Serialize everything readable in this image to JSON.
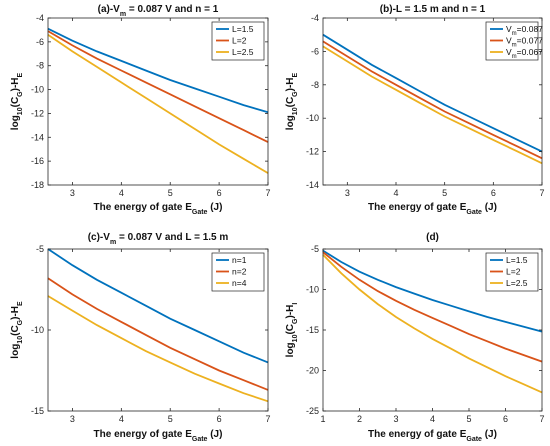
{
  "chart_data": [
    {
      "panel": "a",
      "type": "line",
      "title_parts": [
        "(a)-V",
        "m",
        " = 0.087 V and n = 1"
      ],
      "xlabel_parts": [
        "The energy of gate E",
        "Gate",
        " (J)"
      ],
      "ylabel_parts": [
        "log",
        "10",
        "(C",
        "G",
        ")-H",
        "E"
      ],
      "xlim": [
        2.5,
        7
      ],
      "ylim": [
        -18,
        -4
      ],
      "xticks": [
        3,
        4,
        5,
        6,
        7
      ],
      "yticks": [
        -18,
        -16,
        -14,
        -12,
        -10,
        -8,
        -6,
        -4
      ],
      "legend_position": "top-right",
      "series": [
        {
          "name": "L=1.5",
          "color": "#0072BD",
          "x": [
            2.5,
            3,
            3.5,
            4,
            4.5,
            5,
            5.5,
            6,
            6.5,
            7
          ],
          "y": [
            -4.9,
            -5.9,
            -6.8,
            -7.6,
            -8.4,
            -9.2,
            -9.9,
            -10.6,
            -11.3,
            -11.9
          ]
        },
        {
          "name": "L=2",
          "color": "#D95319",
          "x": [
            2.5,
            3,
            3.5,
            4,
            4.5,
            5,
            5.5,
            6,
            6.5,
            7
          ],
          "y": [
            -5.1,
            -6.3,
            -7.4,
            -8.4,
            -9.4,
            -10.4,
            -11.4,
            -12.4,
            -13.4,
            -14.4
          ]
        },
        {
          "name": "L=2.5",
          "color": "#EDB120",
          "x": [
            2.5,
            3,
            3.5,
            4,
            4.5,
            5,
            5.5,
            6,
            6.5,
            7
          ],
          "y": [
            -5.4,
            -6.8,
            -8.1,
            -9.4,
            -10.7,
            -12.0,
            -13.3,
            -14.6,
            -15.8,
            -17.0
          ]
        }
      ]
    },
    {
      "panel": "b",
      "type": "line",
      "title_parts": [
        "(b)-L = 1.5 m and n = 1"
      ],
      "xlabel_parts": [
        "The energy of gate E",
        "Gate",
        " (J)"
      ],
      "ylabel_parts": [
        "log",
        "10",
        "(C",
        "G",
        ")-H",
        "E"
      ],
      "xlim": [
        2.5,
        7
      ],
      "ylim": [
        -14,
        -4
      ],
      "xticks": [
        3,
        4,
        5,
        6,
        7
      ],
      "yticks": [
        -14,
        -12,
        -10,
        -8,
        -6,
        -4
      ],
      "legend_position": "top-right",
      "series": [
        {
          "name_parts": [
            "V",
            "m",
            "=0.087"
          ],
          "color": "#0072BD",
          "x": [
            2.5,
            3,
            3.5,
            4,
            4.5,
            5,
            5.5,
            6,
            6.5,
            7
          ],
          "y": [
            -5.0,
            -5.9,
            -6.8,
            -7.6,
            -8.4,
            -9.2,
            -9.9,
            -10.6,
            -11.3,
            -12.0
          ]
        },
        {
          "name_parts": [
            "V",
            "m",
            "=0.077"
          ],
          "color": "#D95319",
          "x": [
            2.5,
            3,
            3.5,
            4,
            4.5,
            5,
            5.5,
            6,
            6.5,
            7
          ],
          "y": [
            -5.4,
            -6.3,
            -7.2,
            -8.0,
            -8.8,
            -9.6,
            -10.3,
            -11.0,
            -11.7,
            -12.4
          ]
        },
        {
          "name_parts": [
            "V",
            "m",
            "=0.067"
          ],
          "color": "#EDB120",
          "x": [
            2.5,
            3,
            3.5,
            4,
            4.5,
            5,
            5.5,
            6,
            6.5,
            7
          ],
          "y": [
            -5.7,
            -6.6,
            -7.5,
            -8.3,
            -9.1,
            -9.9,
            -10.6,
            -11.3,
            -12.0,
            -12.7
          ]
        }
      ]
    },
    {
      "panel": "c",
      "type": "line",
      "title_parts": [
        "(c)-V",
        "m",
        " = 0.087 V and L = 1.5 m"
      ],
      "xlabel_parts": [
        "The energy of gate E",
        "Gate",
        " (J)"
      ],
      "ylabel_parts": [
        "log",
        "10",
        "(C",
        "G",
        ")-H",
        "E"
      ],
      "xlim": [
        2.5,
        7
      ],
      "ylim": [
        -15,
        -5
      ],
      "xticks": [
        3,
        4,
        5,
        6,
        7
      ],
      "yticks": [
        -15,
        -10,
        -5
      ],
      "legend_position": "top-right",
      "series": [
        {
          "name": "n=1",
          "color": "#0072BD",
          "x": [
            2.5,
            3,
            3.5,
            4,
            4.5,
            5,
            5.5,
            6,
            6.5,
            7
          ],
          "y": [
            -5.0,
            -6.0,
            -6.9,
            -7.7,
            -8.5,
            -9.3,
            -10.0,
            -10.7,
            -11.4,
            -12.0
          ]
        },
        {
          "name": "n=2",
          "color": "#D95319",
          "x": [
            2.5,
            3,
            3.5,
            4,
            4.5,
            5,
            5.5,
            6,
            6.5,
            7
          ],
          "y": [
            -6.8,
            -7.8,
            -8.7,
            -9.5,
            -10.3,
            -11.1,
            -11.8,
            -12.5,
            -13.1,
            -13.7
          ]
        },
        {
          "name": "n=4",
          "color": "#EDB120",
          "x": [
            2.5,
            3,
            3.5,
            4,
            4.5,
            5,
            5.5,
            6,
            6.5,
            7
          ],
          "y": [
            -7.9,
            -8.8,
            -9.7,
            -10.5,
            -11.3,
            -12.0,
            -12.7,
            -13.3,
            -13.9,
            -14.4
          ]
        }
      ]
    },
    {
      "panel": "d",
      "type": "line",
      "title_parts": [
        "(d)"
      ],
      "xlabel_parts": [
        "The energy of gate E",
        "Gate",
        " (J)"
      ],
      "ylabel_parts": [
        "log",
        "10",
        "(C",
        "G",
        ")-H",
        "I"
      ],
      "xlim": [
        1,
        7
      ],
      "ylim": [
        -25,
        -5
      ],
      "xticks": [
        1,
        2,
        3,
        4,
        5,
        6,
        7
      ],
      "yticks": [
        -25,
        -20,
        -15,
        -10,
        -5
      ],
      "legend_position": "top-right",
      "series": [
        {
          "name": "L=1.5",
          "color": "#0072BD",
          "x": [
            1,
            1.5,
            2,
            2.5,
            3,
            3.5,
            4,
            4.5,
            5,
            5.5,
            6,
            6.5,
            7
          ],
          "y": [
            -5.2,
            -6.6,
            -7.8,
            -8.8,
            -9.7,
            -10.5,
            -11.3,
            -12.0,
            -12.7,
            -13.4,
            -14.0,
            -14.6,
            -15.2
          ]
        },
        {
          "name": "L=2",
          "color": "#D95319",
          "x": [
            1,
            1.5,
            2,
            2.5,
            3,
            3.5,
            4,
            4.5,
            5,
            5.5,
            6,
            6.5,
            7
          ],
          "y": [
            -5.4,
            -7.2,
            -8.8,
            -10.2,
            -11.4,
            -12.5,
            -13.5,
            -14.5,
            -15.5,
            -16.4,
            -17.3,
            -18.1,
            -18.9
          ]
        },
        {
          "name": "L=2.5",
          "color": "#EDB120",
          "x": [
            1,
            1.5,
            2,
            2.5,
            3,
            3.5,
            4,
            4.5,
            5,
            5.5,
            6,
            6.5,
            7
          ],
          "y": [
            -5.7,
            -8.0,
            -10.0,
            -11.8,
            -13.4,
            -14.8,
            -16.1,
            -17.3,
            -18.5,
            -19.6,
            -20.7,
            -21.7,
            -22.7
          ]
        }
      ]
    }
  ]
}
